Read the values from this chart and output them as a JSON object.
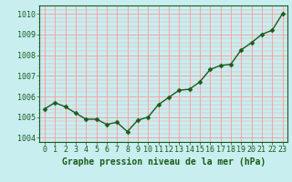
{
  "x": [
    0,
    1,
    2,
    3,
    4,
    5,
    6,
    7,
    8,
    9,
    10,
    11,
    12,
    13,
    14,
    15,
    16,
    17,
    18,
    19,
    20,
    21,
    22,
    23
  ],
  "y": [
    1005.4,
    1005.7,
    1005.5,
    1005.2,
    1004.9,
    1004.9,
    1004.65,
    1004.75,
    1004.3,
    1004.85,
    1005.0,
    1005.6,
    1005.95,
    1006.3,
    1006.35,
    1006.7,
    1007.3,
    1007.5,
    1007.55,
    1008.25,
    1008.6,
    1009.0,
    1009.2,
    1010.0
  ],
  "line_color": "#1a5c1a",
  "marker_color": "#1a5c1a",
  "bg_color": "#c8eef0",
  "grid_color": "#ff9999",
  "xlabel": "Graphe pression niveau de la mer (hPa)",
  "ylim_min": 1003.8,
  "ylim_max": 1010.4,
  "xlim_min": -0.5,
  "xlim_max": 23.5,
  "yticks": [
    1004,
    1005,
    1006,
    1007,
    1008,
    1009,
    1010
  ],
  "xtick_labels": [
    "0",
    "1",
    "2",
    "3",
    "4",
    "5",
    "6",
    "7",
    "8",
    "9",
    "10",
    "11",
    "12",
    "13",
    "14",
    "15",
    "16",
    "17",
    "18",
    "19",
    "20",
    "21",
    "22",
    "23"
  ],
  "xlabel_fontsize": 7.0,
  "tick_fontsize": 6.0,
  "line_width": 1.0,
  "marker_size": 2.5
}
